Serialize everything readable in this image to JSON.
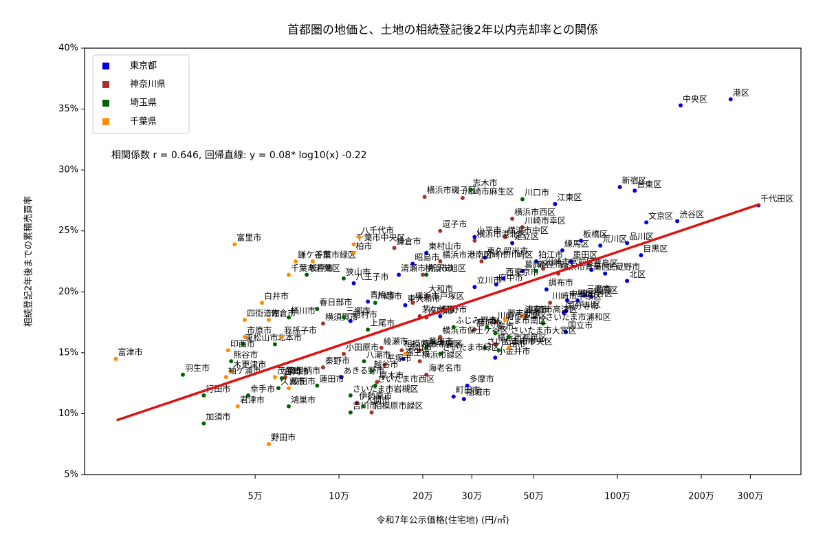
{
  "chart_data": {
    "type": "scatter",
    "title": "首都圏の地価と、土地の相続登記後2年以内売却率との関係",
    "xlabel": "令和7年公示価格(住宅地) (円/㎡)",
    "ylabel": "相続登記2年後までの累積売買率",
    "annotation": "相関係数 r = 0.646, 回帰直線: y = 0.08* log10(x) -0.22",
    "xscale": "log",
    "xlim": [
      12200,
      4560000
    ],
    "xticks": [
      {
        "value": 50000,
        "label": "5万"
      },
      {
        "value": 100000,
        "label": "10万"
      },
      {
        "value": 200000,
        "label": "20万"
      },
      {
        "value": 300000,
        "label": "30万"
      },
      {
        "value": 500000,
        "label": "50万"
      },
      {
        "value": 1000000,
        "label": "100万"
      },
      {
        "value": 2000000,
        "label": "200万"
      },
      {
        "value": 3000000,
        "label": "300万"
      }
    ],
    "ylim": [
      5,
      40
    ],
    "yticks": [
      {
        "value": 5,
        "label": "5%"
      },
      {
        "value": 10,
        "label": "10%"
      },
      {
        "value": 15,
        "label": "15%"
      },
      {
        "value": 20,
        "label": "20%"
      },
      {
        "value": 25,
        "label": "25%"
      },
      {
        "value": 30,
        "label": "30%"
      },
      {
        "value": 35,
        "label": "35%"
      },
      {
        "value": 40,
        "label": "40%"
      }
    ],
    "legend": "upper-left",
    "trend": {
      "x": [
        15900,
        3240000
      ],
      "values": [
        9.46,
        27.19
      ],
      "color": "#e01010"
    },
    "series": [
      {
        "name": "東京都",
        "color": "#0000dd",
        "labels": [
          "港区",
          "中央区",
          "千代田区",
          "新宿区",
          "台東区",
          "渋谷区",
          "文京区",
          "品川区",
          "目黒区",
          "江東区",
          "練馬区",
          "墨田区",
          "荒川区",
          "板橋区",
          "豊島区",
          "中野区",
          "大田区",
          "北区",
          "世田谷区",
          "江戸川区",
          "国立市",
          "調布市",
          "狛江市",
          "足立区",
          "葛飾区",
          "府中市",
          "武蔵野市",
          "三鷹市",
          "国分寺市",
          "小平市",
          "東久留米市",
          "西東京市",
          "立川市",
          "東村山市",
          "清瀬市",
          "昭島市",
          "青梅市",
          "東大和市",
          "羽村市",
          "日野市",
          "町田市",
          "多摩市",
          "福生市",
          "あきる野市",
          "八王子市",
          "小金井市",
          "稲城市"
        ],
        "x": [
          2550000,
          1686000,
          3210000,
          1020000,
          1154000,
          1640000,
          1270000,
          1083000,
          1215000,
          597000,
          634000,
          680000,
          868000,
          740000,
          806000,
          660000,
          806000,
          1083000,
          719000,
          653000,
          653000,
          556000,
          511000,
          419000,
          456000,
          367000,
          903000,
          761000,
          642000,
          307000,
          334000,
          390000,
          307000,
          206000,
          164000,
          184000,
          127000,
          173000,
          110000,
          231000,
          258000,
          289000,
          170000,
          102000,
          113000,
          364000,
          281000
        ],
        "values": [
          35.8,
          35.3,
          27.1,
          28.6,
          28.3,
          25.8,
          25.7,
          24.0,
          23.0,
          27.2,
          23.4,
          22.5,
          23.8,
          24.2,
          21.8,
          19.3,
          19.6,
          20.9,
          19.3,
          18.4,
          16.7,
          20.2,
          22.5,
          24.0,
          21.7,
          20.6,
          21.5,
          19.7,
          18.3,
          24.5,
          22.8,
          21.1,
          20.4,
          23.2,
          21.4,
          22.3,
          19.2,
          18.9,
          17.6,
          18.0,
          11.4,
          12.3,
          14.5,
          13.0,
          20.7,
          14.6,
          11.2
        ]
      },
      {
        "name": "神奈川県",
        "color": "#a93226",
        "labels": [
          "横浜市磯子区",
          "川崎市麻生区",
          "逗子市",
          "川崎市幸区",
          "横浜市西区",
          "横浜市中区",
          "横浜市青葉区",
          "川崎市多摩区",
          "横浜市港南区",
          "横浜市港北区",
          "川崎市宮前区",
          "横浜市都筑区",
          "川崎市中原区",
          "川崎市高津区",
          "藤沢市",
          "横浜市泉区",
          "横浜市保土ケ谷区",
          "横浜市緑区",
          "平塚市",
          "小田原市",
          "厚木市",
          "海老名市",
          "秦野市",
          "相模原市中央区",
          "相模原市緑区",
          "大和市",
          "鎌倉市",
          "横須賀市",
          "茅ケ崎市",
          "伊勢原市",
          "南足柄市",
          "綾瀬市",
          "座間市",
          "横浜市戸塚区",
          "横浜市旭区",
          "川崎市川崎区"
        ],
        "x": [
          203000,
          278000,
          231000,
          456000,
          419000,
          395000,
          613000,
          364000,
          231000,
          307000,
          541000,
          364000,
          573000,
          469000,
          307000,
          195000,
          231000,
          195000,
          146000,
          104000,
          137000,
          206000,
          87700,
          168000,
          131000,
          206000,
          158000,
          87700,
          195000,
          116000,
          64200,
          142000,
          206000,
          184000,
          200000,
          325000
        ],
        "values": [
          27.8,
          27.7,
          25.0,
          25.3,
          26.0,
          24.5,
          21.5,
          17.5,
          22.5,
          24.2,
          21.9,
          15.7,
          19.1,
          18.0,
          16.9,
          15.2,
          16.3,
          14.3,
          14.0,
          14.9,
          12.6,
          13.2,
          13.8,
          15.2,
          10.1,
          19.7,
          23.6,
          17.4,
          18.0,
          10.9,
          13.0,
          15.4,
          17.9,
          19.1,
          21.4,
          22.5
        ]
      },
      {
        "name": "埼玉県",
        "color": "#006400",
        "labels": [
          "志木市",
          "川口市",
          "さいたま市浦和区",
          "さいたま市大宮区",
          "さいたま市中央区",
          "さいたま市南区",
          "さいたま市緑区",
          "さいたま市岩槻区",
          "さいたま市西区",
          "蕨市",
          "戸田市",
          "所沢市",
          "狭山市",
          "坂戸市",
          "川越市",
          "上尾市",
          "春日部市",
          "桶川市",
          "三郷市",
          "越谷市",
          "草加市",
          "北本市",
          "鴻巣市",
          "熊谷市",
          "羽生市",
          "行田市",
          "加須市",
          "幸手市",
          "久喜市",
          "白岡市",
          "蓮田市",
          "東松山市",
          "吉川市",
          "入間市",
          "八潮市",
          "ふじみ野市",
          "新座市"
        ],
        "x": [
          297000,
          456000,
          541000,
          407000,
          334000,
          340000,
          231000,
          110000,
          135000,
          364000,
          375000,
          206000,
          104000,
          76600,
          135000,
          127000,
          83500,
          66000,
          104000,
          131000,
          206000,
          58900,
          66000,
          41000,
          27500,
          32700,
          32700,
          47200,
          60600,
          62300,
          83500,
          45200,
          110000,
          122000,
          123000,
          258000,
          511000
        ],
        "values": [
          28.4,
          27.6,
          17.4,
          16.3,
          15.4,
          17.1,
          14.9,
          11.5,
          12.3,
          16.6,
          15.2,
          21.4,
          21.1,
          21.4,
          19.1,
          16.9,
          18.6,
          17.9,
          17.9,
          13.5,
          15.4,
          15.7,
          10.6,
          14.3,
          13.2,
          11.5,
          9.2,
          11.5,
          12.1,
          12.9,
          12.3,
          15.7,
          10.1,
          10.6,
          14.3,
          17.1,
          21.7
        ]
      },
      {
        "name": "千葉県",
        "color": "#ff8c00",
        "labels": [
          "富津市",
          "富里市",
          "千葉市緑区",
          "鎌ケ谷市",
          "千葉市中央区",
          "八千代市",
          "浦安市",
          "習志野市",
          "市川市",
          "千葉市若葉区",
          "白井市",
          "佐倉市",
          "四街道市",
          "市原市",
          "我孫子市",
          "柏市",
          "流山市",
          "成田市",
          "君津市",
          "野田市",
          "木更津市",
          "袖ケ浦市",
          "印西市",
          "茂原市"
        ],
        "x": [
          15800,
          42200,
          80500,
          69900,
          113000,
          118000,
          456000,
          395000,
          407000,
          66000,
          52900,
          56000,
          45900,
          45900,
          62300,
          113000,
          173000,
          66000,
          43300,
          56000,
          41000,
          39300,
          40000,
          58900
        ],
        "values": [
          14.5,
          23.9,
          22.5,
          22.5,
          23.9,
          24.5,
          18.0,
          17.7,
          15.4,
          21.4,
          19.1,
          17.7,
          17.7,
          16.3,
          16.3,
          23.2,
          14.9,
          12.1,
          10.6,
          7.5,
          13.5,
          13.0,
          15.2,
          13.0
        ]
      }
    ]
  }
}
